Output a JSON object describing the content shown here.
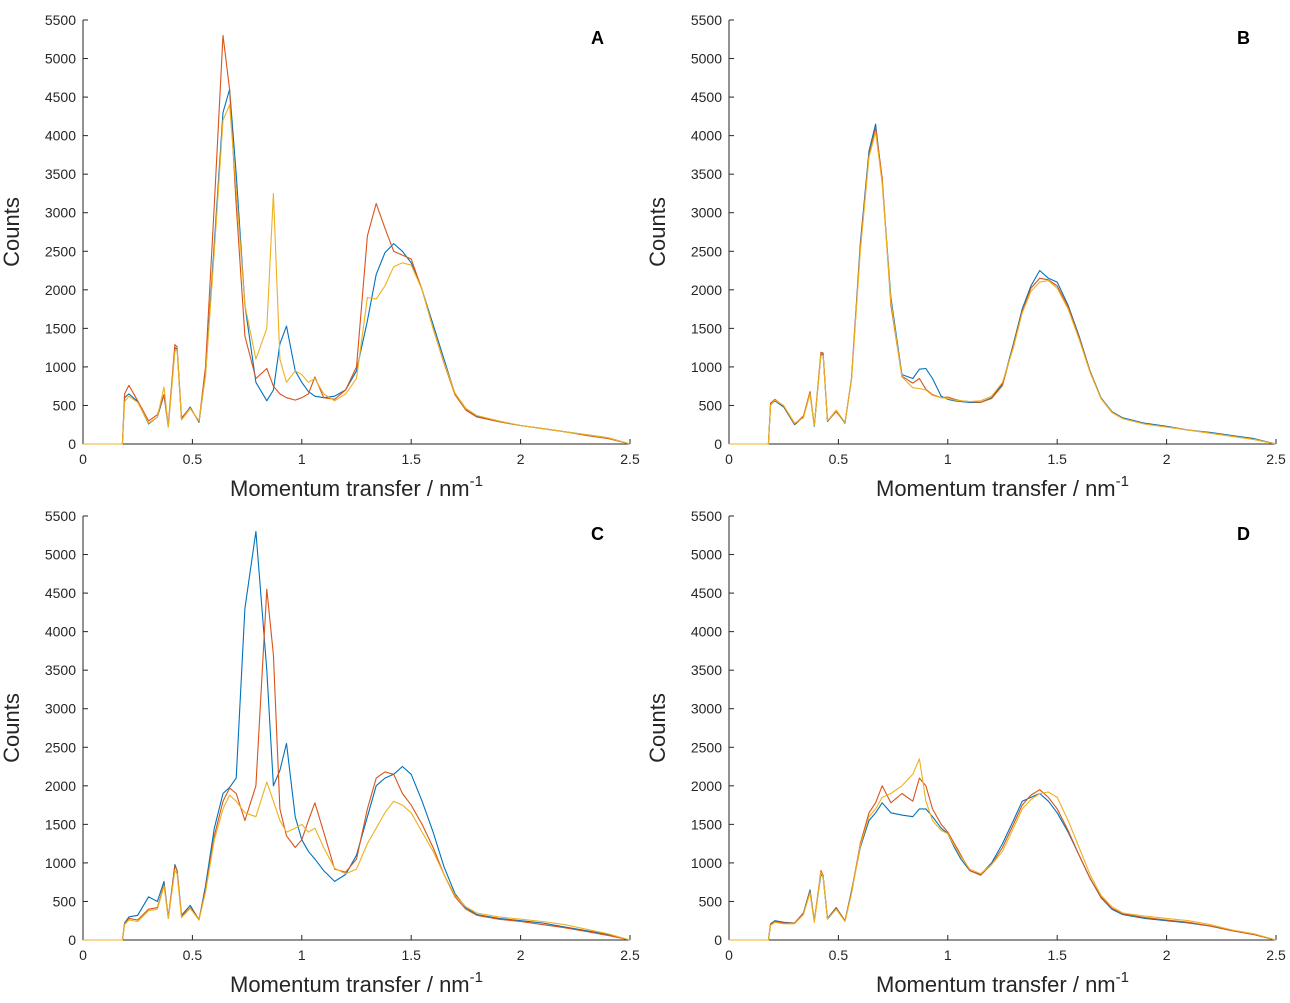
{
  "chart_data": [
    {
      "type": "line",
      "panel_label": "A",
      "xlabel": "Momentum transfer / nm",
      "xlabel_sup": "-1",
      "ylabel": "Counts",
      "xlim": [
        0,
        2.5
      ],
      "ylim": [
        0,
        5500
      ],
      "xticks": [
        0,
        0.5,
        1,
        1.5,
        2,
        2.5
      ],
      "yticks": [
        0,
        500,
        1000,
        1500,
        2000,
        2500,
        3000,
        3500,
        4000,
        4500,
        5000,
        5500
      ],
      "grid": false,
      "x": [
        0,
        0.18,
        0.19,
        0.21,
        0.25,
        0.3,
        0.34,
        0.37,
        0.39,
        0.42,
        0.43,
        0.45,
        0.49,
        0.53,
        0.56,
        0.6,
        0.64,
        0.67,
        0.7,
        0.74,
        0.79,
        0.84,
        0.87,
        0.9,
        0.93,
        0.97,
        1.0,
        1.03,
        1.06,
        1.1,
        1.15,
        1.2,
        1.25,
        1.3,
        1.34,
        1.38,
        1.42,
        1.46,
        1.5,
        1.55,
        1.6,
        1.65,
        1.7,
        1.75,
        1.8,
        1.9,
        2.0,
        2.1,
        2.2,
        2.3,
        2.4,
        2.5
      ],
      "series": [
        {
          "color": "#0072BD",
          "values": [
            0,
            0,
            600,
            650,
            550,
            260,
            350,
            640,
            220,
            1250,
            1230,
            320,
            480,
            280,
            900,
            2600,
            4300,
            4600,
            3500,
            1800,
            800,
            560,
            700,
            1300,
            1530,
            950,
            800,
            680,
            620,
            600,
            620,
            700,
            950,
            1600,
            2200,
            2480,
            2600,
            2500,
            2350,
            2000,
            1550,
            1100,
            650,
            450,
            360,
            290,
            240,
            200,
            160,
            120,
            80,
            0
          ]
        },
        {
          "color": "#D95319",
          "values": [
            0,
            0,
            650,
            760,
            560,
            300,
            380,
            640,
            250,
            1290,
            1260,
            340,
            470,
            290,
            1000,
            3100,
            5300,
            4600,
            3100,
            1400,
            850,
            980,
            750,
            650,
            600,
            570,
            600,
            650,
            870,
            600,
            580,
            700,
            1000,
            2700,
            3120,
            2800,
            2500,
            2450,
            2400,
            2000,
            1500,
            1050,
            640,
            440,
            350,
            290,
            240,
            200,
            160,
            110,
            70,
            0
          ]
        },
        {
          "color": "#EDB120",
          "values": [
            0,
            0,
            550,
            620,
            540,
            270,
            350,
            740,
            220,
            1200,
            1230,
            310,
            460,
            300,
            880,
            2500,
            4200,
            4400,
            3300,
            1800,
            1100,
            1500,
            3250,
            1100,
            800,
            950,
            900,
            800,
            850,
            650,
            560,
            650,
            850,
            1900,
            1880,
            2050,
            2300,
            2350,
            2320,
            2000,
            1500,
            1060,
            660,
            460,
            370,
            300,
            240,
            200,
            160,
            120,
            80,
            0
          ]
        }
      ]
    },
    {
      "type": "line",
      "panel_label": "B",
      "xlabel": "Momentum transfer / nm",
      "xlabel_sup": "-1",
      "ylabel": "Counts",
      "xlim": [
        0,
        2.5
      ],
      "ylim": [
        0,
        5500
      ],
      "xticks": [
        0,
        0.5,
        1,
        1.5,
        2,
        2.5
      ],
      "yticks": [
        0,
        500,
        1000,
        1500,
        2000,
        2500,
        3000,
        3500,
        4000,
        4500,
        5000,
        5500
      ],
      "grid": false,
      "x": [
        0,
        0.18,
        0.19,
        0.21,
        0.25,
        0.3,
        0.34,
        0.37,
        0.39,
        0.42,
        0.43,
        0.45,
        0.49,
        0.53,
        0.56,
        0.6,
        0.64,
        0.67,
        0.7,
        0.74,
        0.79,
        0.84,
        0.87,
        0.9,
        0.93,
        0.97,
        1.0,
        1.03,
        1.06,
        1.1,
        1.15,
        1.2,
        1.25,
        1.3,
        1.34,
        1.38,
        1.42,
        1.46,
        1.5,
        1.55,
        1.6,
        1.65,
        1.7,
        1.75,
        1.8,
        1.9,
        2.0,
        2.1,
        2.2,
        2.3,
        2.4,
        2.5
      ],
      "series": [
        {
          "color": "#0072BD",
          "values": [
            0,
            0,
            510,
            560,
            480,
            250,
            350,
            660,
            230,
            1160,
            1170,
            290,
            430,
            270,
            850,
            2600,
            3800,
            4150,
            3400,
            1900,
            900,
            850,
            970,
            980,
            850,
            620,
            580,
            560,
            550,
            540,
            540,
            600,
            780,
            1300,
            1750,
            2050,
            2250,
            2150,
            2100,
            1800,
            1400,
            950,
            600,
            420,
            340,
            270,
            230,
            180,
            150,
            110,
            70,
            0
          ]
        },
        {
          "color": "#D95319",
          "values": [
            0,
            0,
            530,
            580,
            490,
            260,
            360,
            680,
            240,
            1190,
            1180,
            300,
            420,
            280,
            840,
            2550,
            3750,
            4100,
            3450,
            1800,
            880,
            790,
            850,
            710,
            640,
            600,
            610,
            580,
            560,
            550,
            540,
            590,
            760,
            1280,
            1720,
            2020,
            2150,
            2130,
            2050,
            1780,
            1380,
            940,
            590,
            410,
            330,
            260,
            220,
            180,
            140,
            100,
            60,
            0
          ]
        },
        {
          "color": "#EDB120",
          "values": [
            0,
            0,
            500,
            570,
            500,
            270,
            340,
            650,
            240,
            1150,
            1150,
            300,
            440,
            280,
            830,
            2500,
            3720,
            4050,
            3380,
            1850,
            870,
            730,
            720,
            700,
            630,
            600,
            590,
            570,
            560,
            550,
            560,
            620,
            800,
            1250,
            1700,
            1980,
            2100,
            2120,
            2020,
            1750,
            1360,
            930,
            590,
            410,
            330,
            260,
            220,
            180,
            140,
            100,
            60,
            0
          ]
        }
      ]
    },
    {
      "type": "line",
      "panel_label": "C",
      "xlabel": "Momentum transfer / nm",
      "xlabel_sup": "-1",
      "ylabel": "Counts",
      "xlim": [
        0,
        2.5
      ],
      "ylim": [
        0,
        5500
      ],
      "xticks": [
        0,
        0.5,
        1,
        1.5,
        2,
        2.5
      ],
      "yticks": [
        0,
        500,
        1000,
        1500,
        2000,
        2500,
        3000,
        3500,
        4000,
        4500,
        5000,
        5500
      ],
      "grid": false,
      "x": [
        0,
        0.18,
        0.19,
        0.21,
        0.25,
        0.3,
        0.34,
        0.37,
        0.39,
        0.42,
        0.43,
        0.45,
        0.49,
        0.53,
        0.56,
        0.6,
        0.64,
        0.67,
        0.7,
        0.74,
        0.79,
        0.84,
        0.87,
        0.9,
        0.93,
        0.97,
        1.0,
        1.03,
        1.06,
        1.1,
        1.15,
        1.2,
        1.25,
        1.3,
        1.34,
        1.38,
        1.42,
        1.46,
        1.5,
        1.55,
        1.6,
        1.65,
        1.7,
        1.75,
        1.8,
        1.9,
        2.0,
        2.1,
        2.2,
        2.3,
        2.4,
        2.5
      ],
      "series": [
        {
          "color": "#0072BD",
          "values": [
            0,
            0,
            220,
            300,
            320,
            560,
            500,
            760,
            280,
            980,
            900,
            320,
            450,
            260,
            700,
            1450,
            1900,
            1980,
            2100,
            4300,
            5300,
            3500,
            2000,
            2200,
            2550,
            1600,
            1300,
            1150,
            1050,
            900,
            760,
            850,
            1100,
            1600,
            2000,
            2100,
            2150,
            2250,
            2150,
            1800,
            1400,
            950,
            600,
            420,
            330,
            280,
            250,
            220,
            170,
            120,
            70,
            0
          ]
        },
        {
          "color": "#D95319",
          "values": [
            0,
            0,
            210,
            280,
            260,
            400,
            420,
            720,
            300,
            960,
            900,
            310,
            420,
            270,
            650,
            1350,
            1800,
            1970,
            1900,
            1550,
            2000,
            4550,
            3700,
            1700,
            1350,
            1200,
            1300,
            1550,
            1780,
            1400,
            920,
            880,
            1050,
            1700,
            2100,
            2180,
            2150,
            1900,
            1750,
            1500,
            1200,
            850,
            560,
            400,
            320,
            270,
            240,
            200,
            160,
            110,
            60,
            0
          ]
        },
        {
          "color": "#EDB120",
          "values": [
            0,
            0,
            200,
            260,
            240,
            380,
            400,
            700,
            280,
            900,
            860,
            290,
            410,
            260,
            620,
            1300,
            1700,
            1880,
            1800,
            1650,
            1600,
            2050,
            1800,
            1550,
            1400,
            1450,
            1500,
            1400,
            1450,
            1200,
            930,
            860,
            920,
            1250,
            1450,
            1650,
            1800,
            1750,
            1650,
            1400,
            1150,
            850,
            580,
            430,
            350,
            300,
            270,
            240,
            200,
            140,
            80,
            0
          ]
        }
      ]
    },
    {
      "type": "line",
      "panel_label": "D",
      "xlabel": "Momentum transfer / nm",
      "xlabel_sup": "-1",
      "ylabel": "Counts",
      "xlim": [
        0,
        2.5
      ],
      "ylim": [
        0,
        5500
      ],
      "xticks": [
        0,
        0.5,
        1,
        1.5,
        2,
        2.5
      ],
      "yticks": [
        0,
        500,
        1000,
        1500,
        2000,
        2500,
        3000,
        3500,
        4000,
        4500,
        5000,
        5500
      ],
      "grid": false,
      "x": [
        0,
        0.18,
        0.19,
        0.21,
        0.25,
        0.3,
        0.34,
        0.37,
        0.39,
        0.42,
        0.43,
        0.45,
        0.49,
        0.53,
        0.56,
        0.6,
        0.64,
        0.67,
        0.7,
        0.74,
        0.79,
        0.84,
        0.87,
        0.9,
        0.93,
        0.97,
        1.0,
        1.03,
        1.06,
        1.1,
        1.15,
        1.2,
        1.25,
        1.3,
        1.34,
        1.38,
        1.42,
        1.46,
        1.5,
        1.55,
        1.6,
        1.65,
        1.7,
        1.75,
        1.8,
        1.9,
        2.0,
        2.1,
        2.2,
        2.3,
        2.4,
        2.5
      ],
      "series": [
        {
          "color": "#0072BD",
          "values": [
            0,
            0,
            210,
            250,
            230,
            220,
            350,
            650,
            250,
            850,
            820,
            280,
            420,
            250,
            640,
            1200,
            1550,
            1650,
            1780,
            1650,
            1620,
            1600,
            1700,
            1700,
            1600,
            1450,
            1380,
            1200,
            1050,
            900,
            850,
            1000,
            1250,
            1550,
            1800,
            1850,
            1900,
            1800,
            1650,
            1400,
            1100,
            800,
            550,
            400,
            330,
            280,
            250,
            220,
            180,
            120,
            70,
            0
          ]
        },
        {
          "color": "#D95319",
          "values": [
            0,
            0,
            200,
            240,
            220,
            220,
            340,
            630,
            240,
            900,
            840,
            270,
            410,
            250,
            620,
            1250,
            1650,
            1780,
            2000,
            1780,
            1900,
            1800,
            2100,
            2000,
            1700,
            1500,
            1400,
            1250,
            1100,
            900,
            840,
            980,
            1200,
            1500,
            1750,
            1880,
            1950,
            1850,
            1700,
            1420,
            1100,
            800,
            560,
            410,
            340,
            290,
            260,
            230,
            180,
            120,
            70,
            0
          ]
        },
        {
          "color": "#EDB120",
          "values": [
            0,
            0,
            190,
            230,
            210,
            210,
            330,
            610,
            230,
            880,
            820,
            270,
            400,
            240,
            600,
            1220,
            1600,
            1700,
            1850,
            1900,
            2000,
            2150,
            2350,
            1800,
            1550,
            1420,
            1380,
            1220,
            1080,
            920,
            860,
            980,
            1150,
            1450,
            1700,
            1820,
            1900,
            1920,
            1850,
            1550,
            1200,
            850,
            580,
            430,
            350,
            310,
            280,
            250,
            200,
            130,
            80,
            0
          ]
        }
      ]
    }
  ]
}
